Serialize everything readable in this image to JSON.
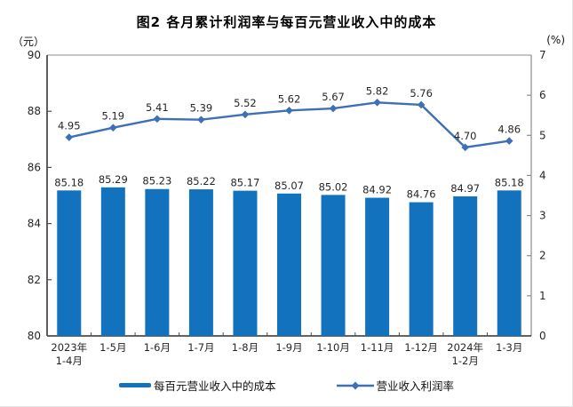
{
  "title": "图2 各月累计利润率与每百元营业收入中的成本",
  "legend": {
    "cost_label": "每百元营业收入中的成本",
    "profit_label": "营业收入利润率"
  },
  "colors": {
    "bar": "#1272BE",
    "line": "#3C70B7",
    "axis_strong": "#4d4d4d",
    "axis_light": "#8c8c8c",
    "label_text": "#262626"
  },
  "chart_data": {
    "type": "bar+line",
    "title": "图2 各月累计利润率与每百元营业收入中的成本",
    "categories": [
      "2023年\n1-4月",
      "1-5月",
      "1-6月",
      "1-7月",
      "1-8月",
      "1-9月",
      "1-10月",
      "1-11月",
      "1-12月",
      "2024年\n1-2月",
      "1-3月"
    ],
    "series": [
      {
        "name": "每百元营业收入中的成本",
        "type": "bar",
        "axis": "left",
        "color": "#1272BE",
        "values": [
          85.18,
          85.29,
          85.23,
          85.22,
          85.17,
          85.07,
          85.02,
          84.92,
          84.76,
          84.97,
          85.18
        ]
      },
      {
        "name": "营业收入利润率",
        "type": "line",
        "axis": "right",
        "color": "#3C70B7",
        "values": [
          4.95,
          5.19,
          5.41,
          5.39,
          5.52,
          5.62,
          5.67,
          5.82,
          5.76,
          4.7,
          4.86
        ]
      }
    ],
    "left_axis": {
      "unit": "（元）",
      "min": 80,
      "max": 90,
      "tick_step": 2,
      "ticks": [
        90,
        88,
        86,
        84,
        82,
        80
      ]
    },
    "right_axis": {
      "unit": "(%)",
      "min": 0,
      "max": 7,
      "tick_step": 1,
      "ticks": [
        7,
        6,
        5,
        4,
        3,
        2,
        1,
        0
      ]
    },
    "grid": false,
    "legend_position": "bottom",
    "value_label_decimals": 2
  }
}
